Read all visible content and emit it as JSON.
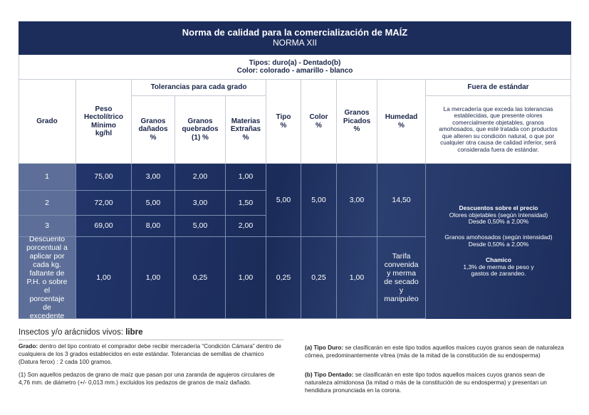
{
  "header": {
    "title": "Norma de calidad para la comercialización de MAÍZ",
    "subtitle": "NORMA XII"
  },
  "types": {
    "tipos": "Tipos: duro(a) - Dentado(b)",
    "color": "Color: colorado - amarillo - blanco"
  },
  "table": {
    "columns": [
      "Grado",
      "Peso Hectolítrico Mínimo kg/hl",
      "Granos dañados %",
      "Granos quebrados (1) %",
      "Materias Extrañas %",
      "Tipo %",
      "Color %",
      "Granos Picados %",
      "Humedad %"
    ],
    "group_header": "Tolerancias para cada grado",
    "fuera_header": "Fuera de estándar",
    "fuera_text": "La mercadería que exceda las tolerancias establecidas, que presente olores comercialmente objetables, granos amohosados, que esté tratada con productos que alteren su condición natural, o que por cualquier otra causa de calidad inferior, será considerada fuera de estándar.",
    "rows": [
      [
        "1",
        "75,00",
        "3,00",
        "2,00",
        "1,00"
      ],
      [
        "2",
        "72,00",
        "5,00",
        "3,00",
        "1,50"
      ],
      [
        "3",
        "69,00",
        "8,00",
        "5,00",
        "2,00"
      ]
    ],
    "shared": [
      "5,00",
      "5,00",
      "3,00",
      "14,50"
    ],
    "discount_row": [
      "Descuento porcentual a aplicar por cada kg. faltante de P.H. o sobre el porcentaje de excedente",
      "1,00",
      "1,00",
      "0,25",
      "1,00",
      "0,25",
      "0,25",
      "1,00",
      "Tarifa convenida y merma de secado y manipuleo"
    ],
    "descuentos": {
      "title": "Descuentos sobre el precio",
      "items": [
        {
          "label": "Olores objetables (según intensidad)",
          "value": "Desde 0,50% a 2,00%"
        },
        {
          "label": "Granos amohosados (según intensidad)",
          "value": "Desde 0,50% a 2,00%"
        },
        {
          "label": "Chamico",
          "value": "1,3% de merma de peso y gastos de zarandeo."
        }
      ]
    }
  },
  "footer": {
    "insectos": {
      "label": "Insectos y/o arácnidos vivos:",
      "value": "libre"
    },
    "grado": {
      "label": "Grado:",
      "text": "dentro del tipo contrato el comprador debe recibir mercadería “Condición Cámara” dentro de cualquiera de los 3 grados establecidos en este estándar. Tolerancias de semillas de chamico (Datura ferox) : 2 cada 100 gramos."
    },
    "note1": "(1) Son aquellos pedazos de grano de maíz que pasan por una zaranda de agujeros circulares de 4,76 mm. de diámetro (+/- 0,013 mm.) excluidos los pedazos de granos de maíz dañado.",
    "duro": {
      "label": "(a) Tipo Duro:",
      "text": "se clasificarán en este tipo todos aquellos maíces cuyos granos sean de naturaleza córnea, predominantemente vítrea (más de la mitad de la constitución de su endosperma)"
    },
    "dentado": {
      "label": "(b) Tipo Dentado:",
      "text": "se clasificarán en este tipo todos aquellos maíces cuyos granos sean de naturaleza almidonosa (la mitad o más de la constitución de su endosperma) y presentan un hendidura pronunciada en la corona."
    }
  }
}
